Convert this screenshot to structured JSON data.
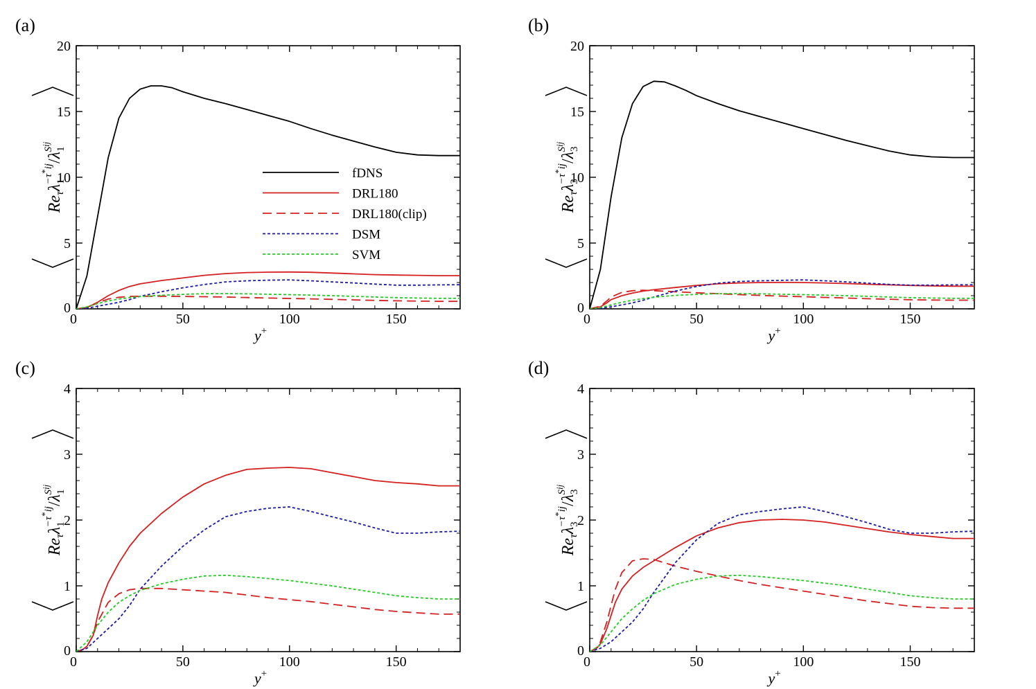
{
  "figure": {
    "legend": [
      {
        "name": "fDNS",
        "color": "#000000",
        "dash": "solid"
      },
      {
        "name": "DRL180",
        "color": "#d42020",
        "dash": "solid"
      },
      {
        "name": "DRL180(clip)",
        "color": "#d42020",
        "dash": "long"
      },
      {
        "name": "DSM",
        "color": "#1a1aa8",
        "dash": "dotted"
      },
      {
        "name": "SVM",
        "color": "#22cc22",
        "dash": "dotted"
      }
    ]
  },
  "chart_data": [
    {
      "panel": "(a)",
      "type": "line",
      "xlabel": "y+",
      "ylabel": "⟨Re_τ λ_1^{-τ*ij} / λ_1^{Sij}⟩",
      "lambda_index": "1",
      "xlim": [
        0,
        180
      ],
      "ylim": [
        0,
        20
      ],
      "xticks": [
        0,
        50,
        100,
        150
      ],
      "yticks": [
        0,
        5,
        10,
        15,
        20
      ],
      "legend_position": "center",
      "series": [
        {
          "name": "fDNS",
          "x": [
            0,
            5,
            10,
            15,
            20,
            25,
            30,
            35,
            40,
            45,
            50,
            60,
            70,
            80,
            90,
            100,
            110,
            120,
            130,
            140,
            150,
            160,
            170,
            180
          ],
          "y": [
            0,
            2.5,
            7,
            11.5,
            14.5,
            16,
            16.7,
            16.95,
            16.95,
            16.8,
            16.5,
            16,
            15.6,
            15.15,
            14.7,
            14.25,
            13.7,
            13.2,
            12.75,
            12.3,
            11.9,
            11.7,
            11.65,
            11.65
          ]
        },
        {
          "name": "DRL180",
          "x": [
            0,
            5,
            10,
            15,
            20,
            25,
            30,
            40,
            50,
            60,
            70,
            80,
            90,
            100,
            110,
            120,
            130,
            140,
            150,
            160,
            170,
            180
          ],
          "y": [
            0,
            0.1,
            0.5,
            1,
            1.4,
            1.7,
            1.9,
            2.15,
            2.35,
            2.55,
            2.68,
            2.76,
            2.79,
            2.8,
            2.78,
            2.72,
            2.66,
            2.6,
            2.57,
            2.55,
            2.52,
            2.52
          ]
        },
        {
          "name": "DRL180(clip)",
          "x": [
            0,
            5,
            10,
            15,
            20,
            25,
            30,
            40,
            50,
            60,
            70,
            80,
            90,
            100,
            110,
            120,
            130,
            140,
            150,
            160,
            170,
            180
          ],
          "y": [
            0,
            0.1,
            0.45,
            0.75,
            0.88,
            0.94,
            0.96,
            0.96,
            0.94,
            0.92,
            0.9,
            0.86,
            0.82,
            0.79,
            0.76,
            0.72,
            0.68,
            0.64,
            0.61,
            0.59,
            0.57,
            0.57
          ]
        },
        {
          "name": "DSM",
          "x": [
            0,
            5,
            10,
            15,
            20,
            25,
            30,
            40,
            50,
            60,
            70,
            80,
            90,
            100,
            110,
            120,
            130,
            140,
            150,
            160,
            170,
            180
          ],
          "y": [
            0,
            0.05,
            0.2,
            0.35,
            0.5,
            0.7,
            0.95,
            1.3,
            1.6,
            1.85,
            2.05,
            2.13,
            2.18,
            2.2,
            2.13,
            2.05,
            1.97,
            1.88,
            1.8,
            1.8,
            1.82,
            1.83
          ]
        },
        {
          "name": "SVM",
          "x": [
            0,
            5,
            10,
            15,
            20,
            25,
            30,
            40,
            50,
            60,
            70,
            80,
            90,
            100,
            110,
            120,
            130,
            140,
            150,
            160,
            170,
            180
          ],
          "y": [
            0,
            0.15,
            0.4,
            0.6,
            0.75,
            0.85,
            0.93,
            1.03,
            1.1,
            1.15,
            1.16,
            1.14,
            1.11,
            1.08,
            1.04,
            1,
            0.95,
            0.9,
            0.85,
            0.82,
            0.8,
            0.8
          ]
        }
      ]
    },
    {
      "panel": "(b)",
      "type": "line",
      "xlabel": "y+",
      "ylabel": "⟨Re_τ λ_3^{-τ*ij} / λ_3^{Sij}⟩",
      "lambda_index": "3",
      "xlim": [
        0,
        180
      ],
      "ylim": [
        0,
        20
      ],
      "xticks": [
        0,
        50,
        100,
        150
      ],
      "yticks": [
        0,
        5,
        10,
        15,
        20
      ],
      "series": [
        {
          "name": "fDNS",
          "x": [
            0,
            5,
            10,
            15,
            20,
            25,
            30,
            35,
            40,
            45,
            50,
            60,
            70,
            80,
            90,
            100,
            110,
            120,
            130,
            140,
            150,
            160,
            170,
            180
          ],
          "y": [
            0,
            3,
            8.5,
            13,
            15.6,
            16.9,
            17.3,
            17.25,
            16.95,
            16.6,
            16.2,
            15.6,
            15.05,
            14.6,
            14.15,
            13.7,
            13.25,
            12.8,
            12.4,
            12,
            11.7,
            11.55,
            11.5,
            11.5
          ]
        },
        {
          "name": "DRL180",
          "x": [
            0,
            5,
            8,
            10,
            15,
            20,
            25,
            30,
            40,
            50,
            60,
            70,
            80,
            90,
            100,
            110,
            120,
            130,
            140,
            150,
            160,
            170,
            180
          ],
          "y": [
            0,
            0.15,
            0.45,
            0.7,
            1,
            1.2,
            1.35,
            1.45,
            1.62,
            1.78,
            1.9,
            1.97,
            2,
            2.01,
            2,
            1.97,
            1.92,
            1.87,
            1.82,
            1.78,
            1.75,
            1.72,
            1.72
          ]
        },
        {
          "name": "DRL180(clip)",
          "x": [
            0,
            5,
            8,
            10,
            15,
            20,
            25,
            30,
            40,
            50,
            60,
            70,
            80,
            90,
            100,
            110,
            120,
            130,
            140,
            150,
            160,
            170,
            180
          ],
          "y": [
            0,
            0.2,
            0.6,
            0.9,
            1.25,
            1.38,
            1.41,
            1.38,
            1.3,
            1.22,
            1.15,
            1.08,
            1.02,
            0.97,
            0.92,
            0.87,
            0.82,
            0.77,
            0.73,
            0.69,
            0.67,
            0.66,
            0.66
          ]
        },
        {
          "name": "DSM",
          "x": [
            0,
            5,
            10,
            15,
            20,
            25,
            30,
            40,
            50,
            60,
            70,
            80,
            90,
            100,
            110,
            120,
            130,
            140,
            150,
            160,
            170,
            180
          ],
          "y": [
            0,
            0.05,
            0.15,
            0.3,
            0.45,
            0.65,
            0.9,
            1.35,
            1.7,
            1.95,
            2.08,
            2.13,
            2.17,
            2.2,
            2.13,
            2.05,
            1.96,
            1.86,
            1.8,
            1.8,
            1.82,
            1.83
          ]
        },
        {
          "name": "SVM",
          "x": [
            0,
            5,
            10,
            15,
            20,
            25,
            30,
            40,
            50,
            60,
            70,
            80,
            90,
            100,
            110,
            120,
            130,
            140,
            150,
            160,
            170,
            180
          ],
          "y": [
            0,
            0.1,
            0.3,
            0.5,
            0.65,
            0.78,
            0.88,
            1.02,
            1.1,
            1.15,
            1.16,
            1.14,
            1.11,
            1.08,
            1.04,
            1,
            0.95,
            0.9,
            0.85,
            0.82,
            0.8,
            0.8
          ]
        }
      ]
    },
    {
      "panel": "(c)",
      "type": "line",
      "xlabel": "y+",
      "ylabel": "⟨Re_τ λ_1^{-τ*ij} / λ_1^{Sij}⟩",
      "lambda_index": "1",
      "xlim": [
        0,
        180
      ],
      "ylim": [
        0,
        4
      ],
      "xticks": [
        0,
        50,
        100,
        150
      ],
      "yticks": [
        0,
        1,
        2,
        3,
        4
      ],
      "series": [
        {
          "name": "DRL180",
          "x": [
            0,
            3,
            5,
            8,
            10,
            12,
            15,
            20,
            25,
            30,
            40,
            50,
            60,
            70,
            80,
            90,
            100,
            110,
            120,
            130,
            140,
            150,
            160,
            170,
            180
          ],
          "y": [
            0,
            0.03,
            0.08,
            0.25,
            0.55,
            0.8,
            1.05,
            1.35,
            1.6,
            1.8,
            2.1,
            2.35,
            2.55,
            2.68,
            2.77,
            2.79,
            2.8,
            2.78,
            2.72,
            2.66,
            2.6,
            2.57,
            2.55,
            2.52,
            2.52
          ]
        },
        {
          "name": "DRL180(clip)",
          "x": [
            0,
            3,
            5,
            8,
            10,
            15,
            20,
            25,
            30,
            40,
            50,
            60,
            70,
            80,
            90,
            100,
            110,
            120,
            130,
            140,
            150,
            160,
            170,
            180
          ],
          "y": [
            0,
            0.03,
            0.08,
            0.25,
            0.45,
            0.75,
            0.88,
            0.94,
            0.96,
            0.96,
            0.94,
            0.92,
            0.9,
            0.86,
            0.82,
            0.79,
            0.76,
            0.72,
            0.68,
            0.64,
            0.61,
            0.59,
            0.57,
            0.57
          ]
        },
        {
          "name": "DSM",
          "x": [
            0,
            5,
            10,
            15,
            20,
            25,
            30,
            40,
            50,
            60,
            70,
            80,
            90,
            100,
            110,
            120,
            130,
            140,
            150,
            160,
            170,
            180
          ],
          "y": [
            0,
            0.05,
            0.2,
            0.35,
            0.5,
            0.7,
            0.95,
            1.3,
            1.6,
            1.85,
            2.05,
            2.13,
            2.18,
            2.2,
            2.13,
            2.05,
            1.97,
            1.88,
            1.8,
            1.8,
            1.82,
            1.83
          ]
        },
        {
          "name": "SVM",
          "x": [
            0,
            5,
            10,
            15,
            20,
            25,
            30,
            40,
            50,
            60,
            70,
            80,
            90,
            100,
            110,
            120,
            130,
            140,
            150,
            160,
            170,
            180
          ],
          "y": [
            0,
            0.15,
            0.4,
            0.6,
            0.75,
            0.85,
            0.93,
            1.03,
            1.1,
            1.15,
            1.16,
            1.14,
            1.11,
            1.08,
            1.04,
            1,
            0.95,
            0.9,
            0.85,
            0.82,
            0.8,
            0.8
          ]
        }
      ]
    },
    {
      "panel": "(d)",
      "type": "line",
      "xlabel": "y+",
      "ylabel": "⟨Re_τ λ_3^{-τ*ij} / λ_3^{Sij}⟩",
      "lambda_index": "3",
      "xlim": [
        0,
        180
      ],
      "ylim": [
        0,
        4
      ],
      "xticks": [
        0,
        50,
        100,
        150
      ],
      "yticks": [
        0,
        1,
        2,
        3,
        4
      ],
      "series": [
        {
          "name": "DRL180",
          "x": [
            0,
            3,
            5,
            8,
            10,
            12,
            15,
            20,
            25,
            30,
            40,
            50,
            60,
            70,
            80,
            90,
            100,
            110,
            120,
            130,
            140,
            150,
            160,
            170,
            180
          ],
          "y": [
            0,
            0.04,
            0.12,
            0.35,
            0.55,
            0.75,
            0.95,
            1.15,
            1.28,
            1.38,
            1.58,
            1.76,
            1.88,
            1.96,
            2,
            2.01,
            2,
            1.97,
            1.92,
            1.87,
            1.82,
            1.78,
            1.75,
            1.72,
            1.72
          ]
        },
        {
          "name": "DRL180(clip)",
          "x": [
            0,
            3,
            5,
            8,
            10,
            12,
            15,
            20,
            25,
            30,
            40,
            50,
            60,
            70,
            80,
            90,
            100,
            110,
            120,
            130,
            140,
            150,
            160,
            170,
            180
          ],
          "y": [
            0,
            0.05,
            0.15,
            0.45,
            0.7,
            0.95,
            1.2,
            1.38,
            1.41,
            1.4,
            1.3,
            1.22,
            1.15,
            1.08,
            1.02,
            0.97,
            0.92,
            0.87,
            0.82,
            0.77,
            0.73,
            0.69,
            0.67,
            0.66,
            0.66
          ]
        },
        {
          "name": "DSM",
          "x": [
            0,
            5,
            10,
            15,
            20,
            25,
            30,
            40,
            50,
            60,
            70,
            80,
            90,
            100,
            110,
            120,
            130,
            140,
            150,
            160,
            170,
            180
          ],
          "y": [
            0,
            0.05,
            0.15,
            0.3,
            0.45,
            0.65,
            0.9,
            1.35,
            1.7,
            1.95,
            2.08,
            2.13,
            2.17,
            2.2,
            2.13,
            2.05,
            1.96,
            1.86,
            1.8,
            1.8,
            1.82,
            1.83
          ]
        },
        {
          "name": "SVM",
          "x": [
            0,
            5,
            10,
            15,
            20,
            25,
            30,
            40,
            50,
            60,
            70,
            80,
            90,
            100,
            110,
            120,
            130,
            140,
            150,
            160,
            170,
            180
          ],
          "y": [
            0,
            0.1,
            0.3,
            0.5,
            0.65,
            0.78,
            0.88,
            1.02,
            1.1,
            1.15,
            1.16,
            1.14,
            1.11,
            1.08,
            1.04,
            1,
            0.95,
            0.9,
            0.85,
            0.82,
            0.8,
            0.8
          ]
        }
      ]
    }
  ]
}
